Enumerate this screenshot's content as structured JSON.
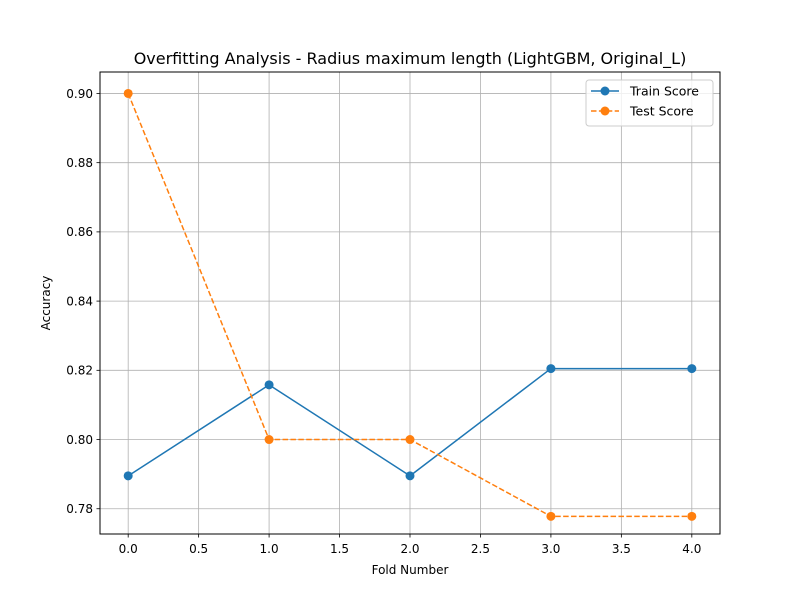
{
  "chart_data": {
    "type": "line",
    "title": "Overfitting Analysis - Radius maximum length (LightGBM, Original_L)",
    "xlabel": "Fold Number",
    "ylabel": "Accuracy",
    "xlim": [
      -0.2,
      4.2
    ],
    "ylim": [
      0.7727,
      0.9062
    ],
    "grid": true,
    "legend_position": "top-right",
    "x_ticks": [
      0.0,
      0.5,
      1.0,
      1.5,
      2.0,
      2.5,
      3.0,
      3.5,
      4.0
    ],
    "x_tick_labels": [
      "0.0",
      "0.5",
      "1.0",
      "1.5",
      "2.0",
      "2.5",
      "3.0",
      "3.5",
      "4.0"
    ],
    "y_ticks": [
      0.78,
      0.8,
      0.82,
      0.84,
      0.86,
      0.88,
      0.9
    ],
    "y_tick_labels": [
      "0.78",
      "0.80",
      "0.82",
      "0.84",
      "0.86",
      "0.88",
      "0.90"
    ],
    "x": [
      0,
      1,
      2,
      3,
      4
    ],
    "series": [
      {
        "name": "Train Score",
        "values": [
          0.7895,
          0.8158,
          0.7895,
          0.8205,
          0.8205
        ],
        "color": "#1f77b4",
        "linestyle": "solid",
        "marker": "circle"
      },
      {
        "name": "Test Score",
        "values": [
          0.9,
          0.8,
          0.8,
          0.7778,
          0.7778
        ],
        "color": "#ff7f0e",
        "linestyle": "dashed",
        "marker": "circle"
      }
    ]
  }
}
